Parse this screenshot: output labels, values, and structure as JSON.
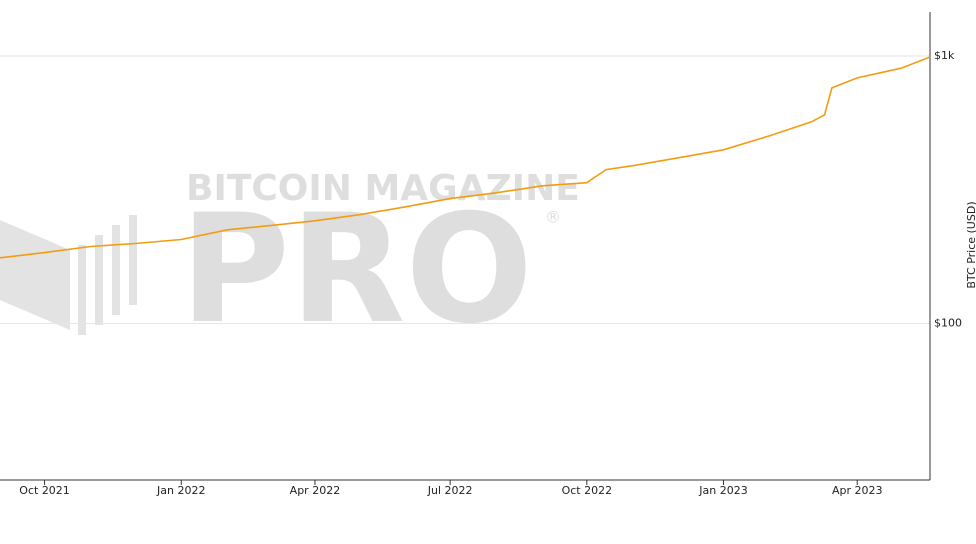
{
  "chart_data": {
    "type": "line",
    "y_label": "BTC Price (USD)",
    "watermark": {
      "top": "BITCOIN MAGAZINE",
      "main": "PRO",
      "mark": "®"
    },
    "x": [
      "2021-09-01",
      "2021-10-01",
      "2021-11-01",
      "2021-12-01",
      "2022-01-01",
      "2022-02-01",
      "2022-03-01",
      "2022-04-01",
      "2022-05-01",
      "2022-06-01",
      "2022-07-01",
      "2022-08-01",
      "2022-09-01",
      "2022-10-01",
      "2022-10-14",
      "2022-11-01",
      "2022-12-01",
      "2023-01-01",
      "2023-02-01",
      "2023-03-01",
      "2023-03-10",
      "2023-03-15",
      "2023-04-01",
      "2023-05-01",
      "2023-05-20"
    ],
    "series": [
      {
        "name": "BTC Price",
        "color": "#f39c12",
        "values": [
          176,
          184,
          194,
          199,
          206,
          224,
          232,
          242,
          255,
          273,
          293,
          308,
          327,
          336,
          376,
          389,
          416,
          446,
          503,
          567,
          602,
          760,
          828,
          902,
          991
        ]
      }
    ],
    "xlim": [
      "2021-09-01",
      "2023-05-20"
    ],
    "xticks": [
      {
        "value": "2021-10-01",
        "label": "Oct 2021"
      },
      {
        "value": "2022-01-01",
        "label": "Jan 2022"
      },
      {
        "value": "2022-04-01",
        "label": "Apr 2022"
      },
      {
        "value": "2022-07-01",
        "label": "Jul 2022"
      },
      {
        "value": "2022-10-01",
        "label": "Oct 2022"
      },
      {
        "value": "2023-01-01",
        "label": "Jan 2023"
      },
      {
        "value": "2023-04-01",
        "label": "Apr 2023"
      }
    ],
    "ylim": [
      26,
      1460
    ],
    "yticks": [
      {
        "value": 100,
        "label": "$100"
      },
      {
        "value": 1000,
        "label": "$1k"
      }
    ],
    "log_y": true,
    "grid": true
  }
}
